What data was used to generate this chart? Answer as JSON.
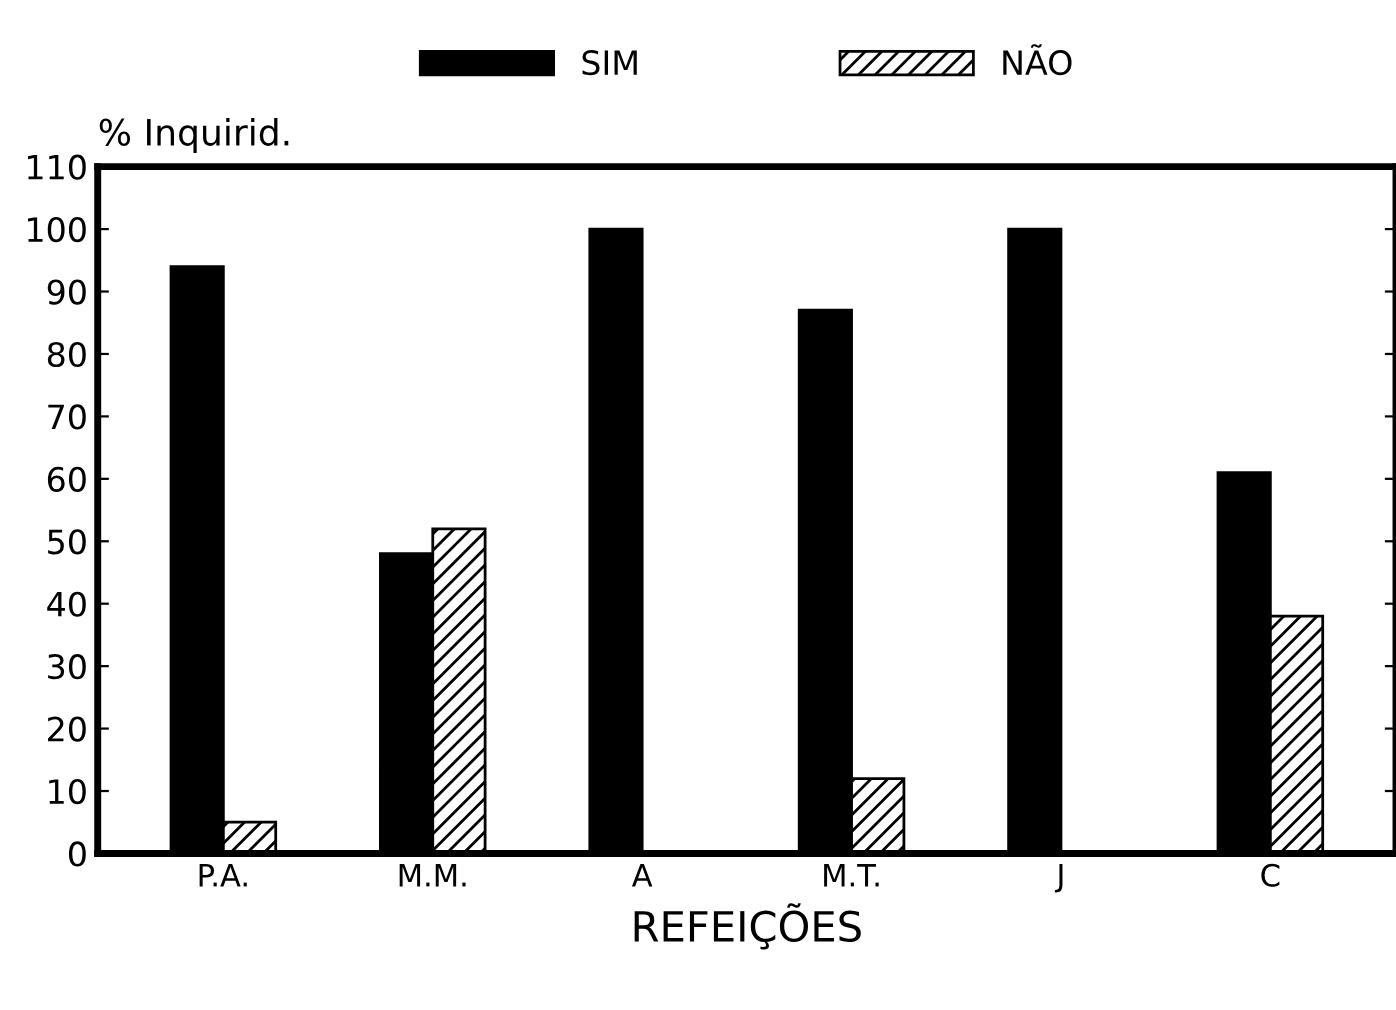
{
  "chart_data": {
    "type": "bar",
    "xlabel": "REFEIÇÕES",
    "ylabel": "% Inquirid.",
    "categories": [
      "P.A.",
      "M.M.",
      "A",
      "M.T.",
      "J",
      "C"
    ],
    "series": [
      {
        "name": "SIM",
        "color": "#000000",
        "values": [
          94,
          48,
          100,
          87,
          100,
          61
        ]
      },
      {
        "name": "NÃO",
        "color": "#000000",
        "values": [
          5,
          52,
          0,
          12,
          0,
          38
        ]
      }
    ],
    "ylim": [
      0,
      110
    ],
    "yticks": [
      0,
      10,
      20,
      30,
      40,
      50,
      60,
      70,
      80,
      90,
      100,
      110
    ],
    "grid": false,
    "legend": "top"
  }
}
